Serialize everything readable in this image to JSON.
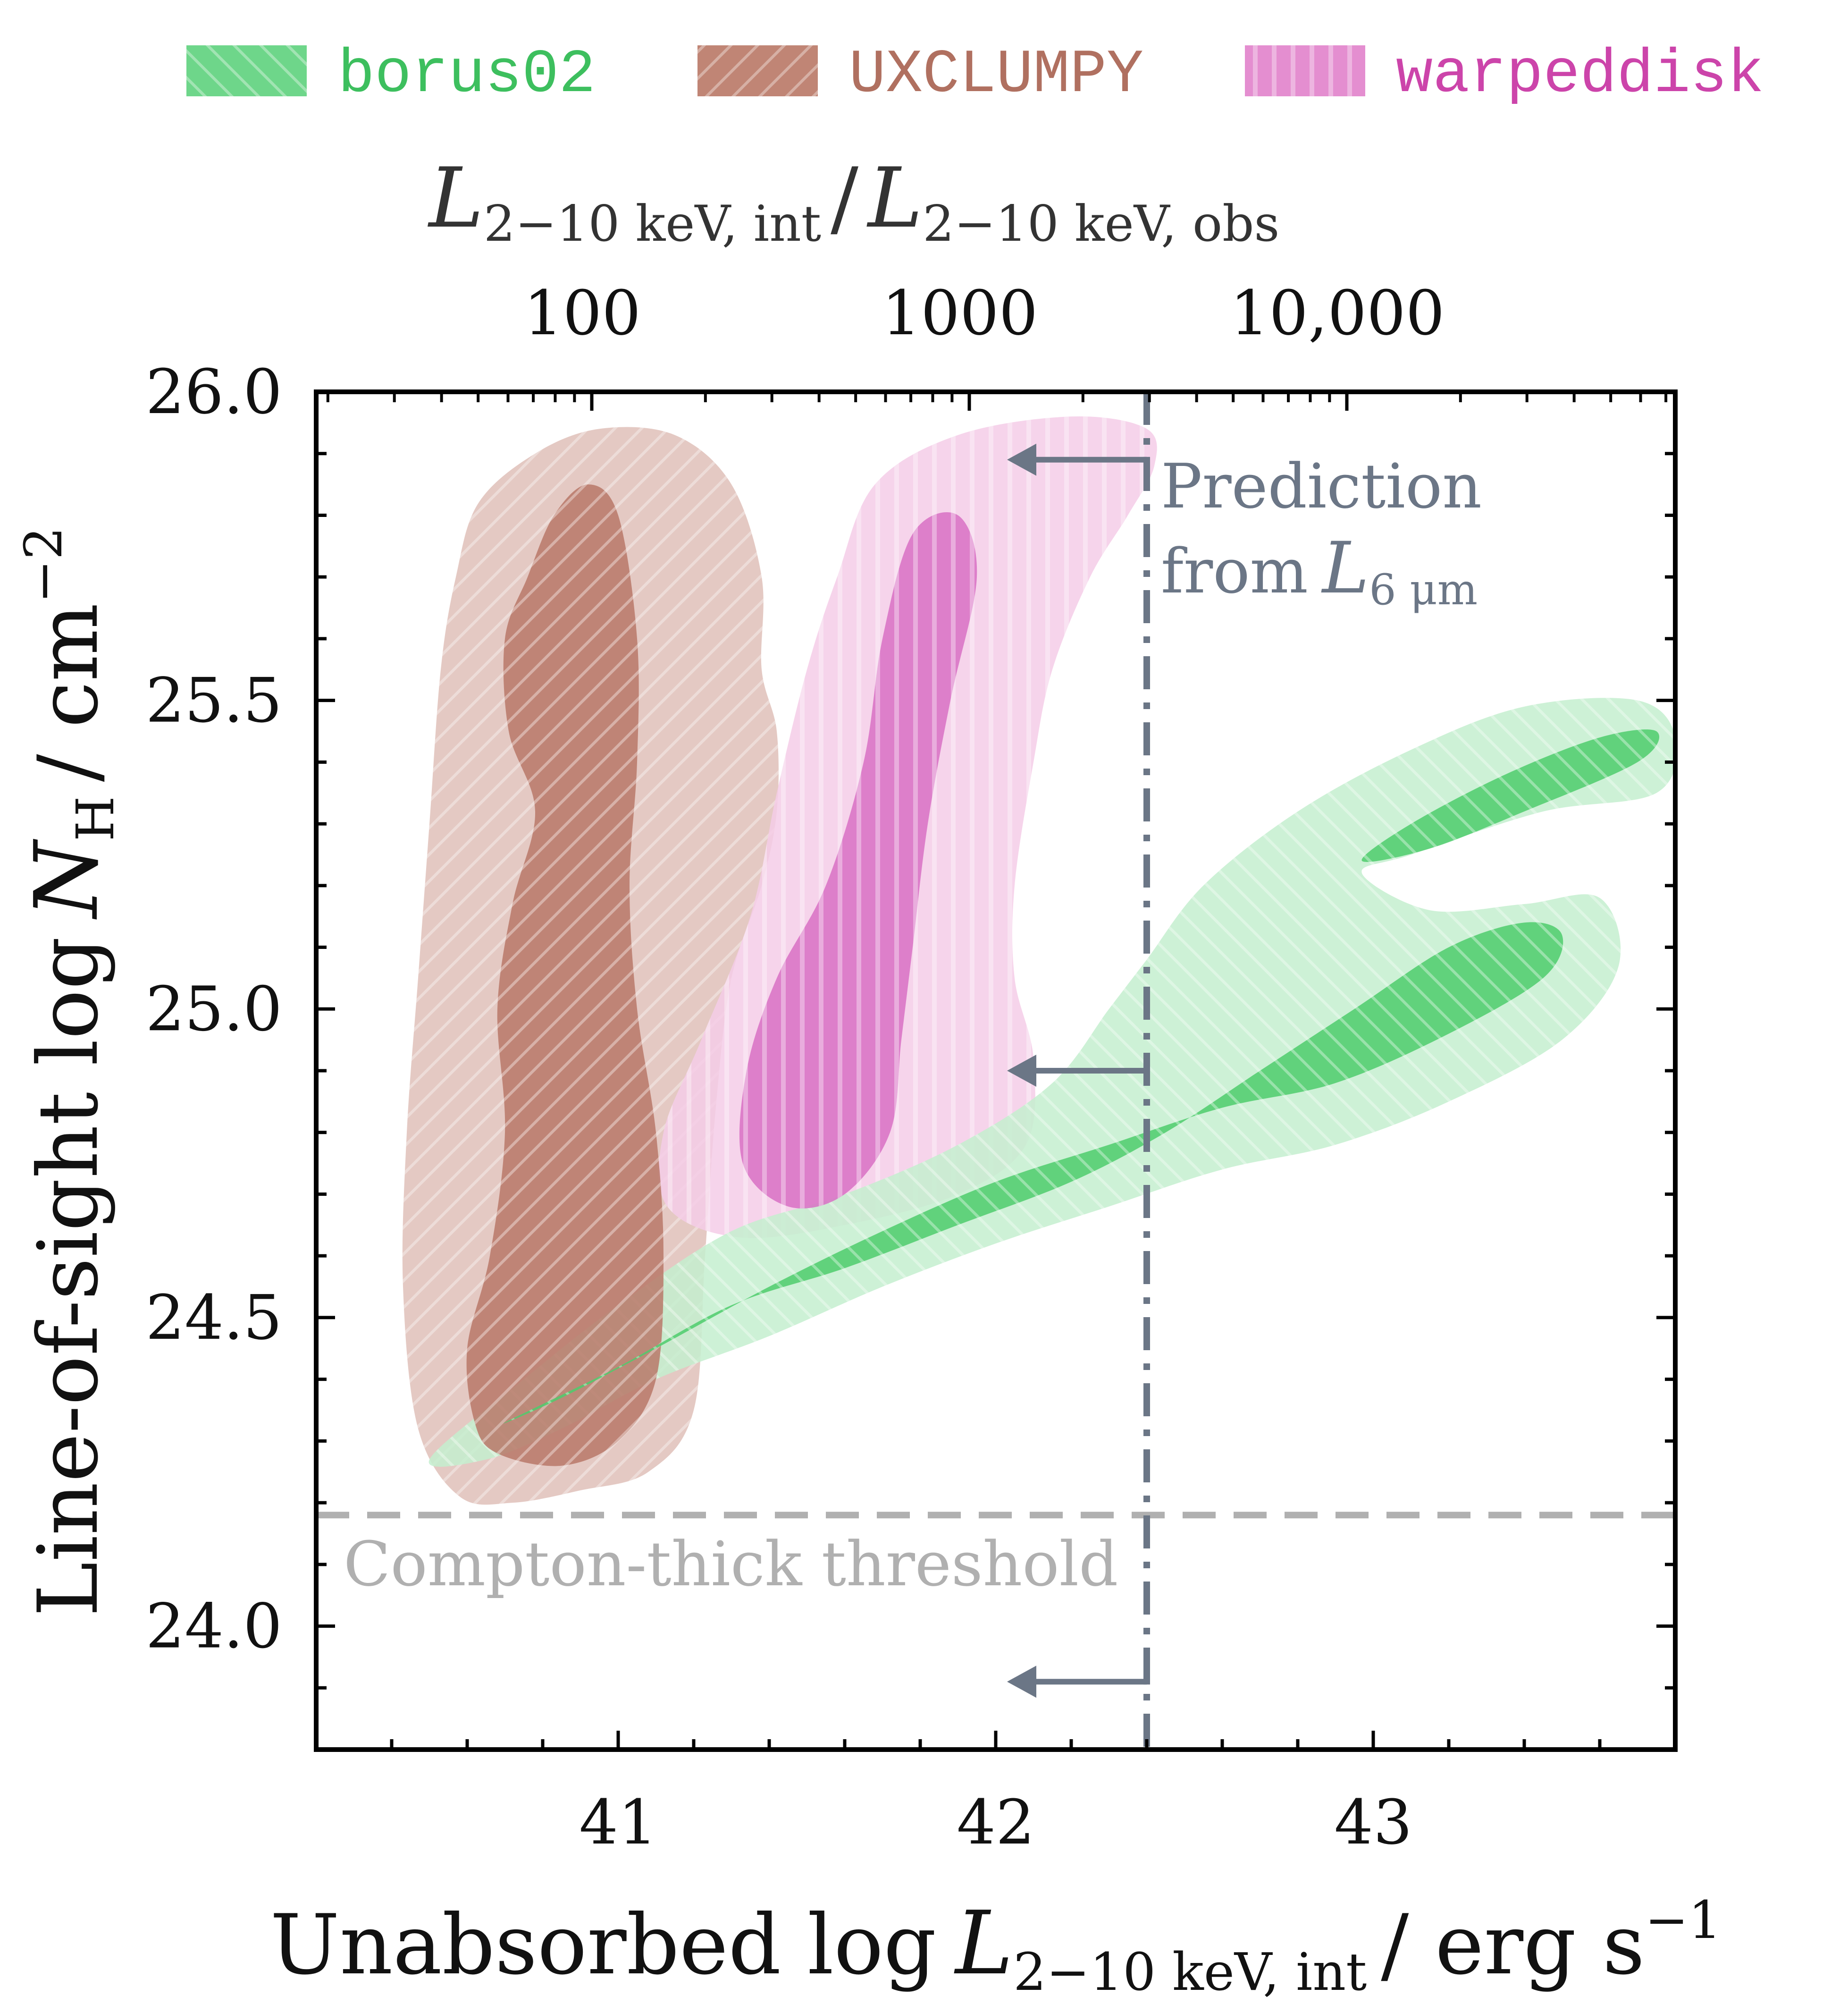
{
  "chart_data": {
    "type": "contour",
    "xaxis": {
      "label_main": "Unabsorbed log",
      "label_var": "L",
      "label_sub": "2−10 keV, int",
      "label_unit": "/ erg s",
      "label_sup": "−1",
      "lim": [
        40.2,
        43.8
      ],
      "ticks": [
        41,
        42,
        43
      ],
      "tick_labels": [
        "41",
        "42",
        "43"
      ],
      "minor_step": 0.2
    },
    "yaxis": {
      "label_main": "Line-of-sight log",
      "label_var": "N",
      "label_sub": "H",
      "label_unit": "/ cm",
      "label_sup": "−2",
      "lim": [
        23.8,
        26.0
      ],
      "ticks": [
        24.0,
        24.5,
        25.0,
        25.5,
        26.0
      ],
      "tick_labels": [
        "24.0",
        "24.5",
        "25.0",
        "25.5",
        "26.0"
      ],
      "minor_step": 0.1
    },
    "top_axis": {
      "label_var1": "L",
      "label_sub1": "2−10 keV, int",
      "label_sep": "/",
      "label_var2": "L",
      "label_sub2": "2−10 keV, obs",
      "ticks_x": [
        40.93,
        41.93,
        42.93
      ],
      "tick_labels": [
        "100",
        "1000",
        "10,000"
      ]
    },
    "legend": [
      {
        "name": "borus02",
        "color": "#3dbf5e",
        "hatch": "diagonal-back"
      },
      {
        "name": "UXCLUMPY",
        "color": "#b07060",
        "hatch": "diagonal-forward"
      },
      {
        "name": "warpeddisk",
        "color": "#cc44aa",
        "hatch": "vertical"
      }
    ],
    "series": [
      {
        "name": "UXCLUMPY",
        "outer_color": "#dfbfb8",
        "inner_color": "#b87868",
        "outer": [
          [
            40.58,
            24.21
          ],
          [
            40.72,
            24.2
          ],
          [
            40.9,
            24.22
          ],
          [
            41.08,
            24.25
          ],
          [
            41.2,
            24.35
          ],
          [
            41.23,
            24.6
          ],
          [
            41.26,
            24.85
          ],
          [
            41.3,
            25.05
          ],
          [
            41.38,
            25.2
          ],
          [
            41.42,
            25.32
          ],
          [
            41.42,
            25.45
          ],
          [
            41.38,
            25.55
          ],
          [
            41.38,
            25.7
          ],
          [
            41.3,
            25.85
          ],
          [
            41.15,
            25.93
          ],
          [
            40.95,
            25.94
          ],
          [
            40.78,
            25.9
          ],
          [
            40.63,
            25.82
          ],
          [
            40.57,
            25.7
          ],
          [
            40.53,
            25.55
          ],
          [
            40.5,
            25.3
          ],
          [
            40.47,
            25.05
          ],
          [
            40.44,
            24.8
          ],
          [
            40.43,
            24.55
          ],
          [
            40.47,
            24.32
          ],
          [
            40.58,
            24.21
          ]
        ],
        "inner": [
          [
            40.68,
            24.28
          ],
          [
            40.85,
            24.26
          ],
          [
            41.0,
            24.3
          ],
          [
            41.1,
            24.4
          ],
          [
            41.12,
            24.6
          ],
          [
            41.1,
            24.8
          ],
          [
            41.05,
            25.0
          ],
          [
            41.03,
            25.2
          ],
          [
            41.05,
            25.4
          ],
          [
            41.05,
            25.6
          ],
          [
            41.0,
            25.8
          ],
          [
            40.92,
            25.85
          ],
          [
            40.83,
            25.8
          ],
          [
            40.76,
            25.7
          ],
          [
            40.7,
            25.6
          ],
          [
            40.71,
            25.45
          ],
          [
            40.78,
            25.32
          ],
          [
            40.72,
            25.17
          ],
          [
            40.68,
            25.0
          ],
          [
            40.7,
            24.8
          ],
          [
            40.66,
            24.6
          ],
          [
            40.6,
            24.45
          ],
          [
            40.62,
            24.33
          ],
          [
            40.68,
            24.28
          ]
        ]
      },
      {
        "name": "warpeddisk",
        "outer_color": "#f4cce8",
        "inner_color": "#d870c4",
        "outer": [
          [
            41.13,
            24.68
          ],
          [
            41.32,
            24.63
          ],
          [
            41.6,
            24.65
          ],
          [
            41.9,
            24.7
          ],
          [
            42.08,
            24.78
          ],
          [
            42.1,
            24.92
          ],
          [
            42.05,
            25.05
          ],
          [
            42.05,
            25.2
          ],
          [
            42.1,
            25.4
          ],
          [
            42.15,
            25.55
          ],
          [
            42.25,
            25.7
          ],
          [
            42.35,
            25.8
          ],
          [
            42.42,
            25.88
          ],
          [
            42.4,
            25.94
          ],
          [
            42.2,
            25.96
          ],
          [
            41.9,
            25.93
          ],
          [
            41.68,
            25.85
          ],
          [
            41.58,
            25.7
          ],
          [
            41.5,
            25.55
          ],
          [
            41.42,
            25.35
          ],
          [
            41.35,
            25.15
          ],
          [
            41.22,
            24.95
          ],
          [
            41.12,
            24.8
          ],
          [
            41.13,
            24.68
          ]
        ],
        "inner": [
          [
            41.33,
            24.75
          ],
          [
            41.45,
            24.68
          ],
          [
            41.6,
            24.7
          ],
          [
            41.72,
            24.8
          ],
          [
            41.75,
            24.95
          ],
          [
            41.78,
            25.1
          ],
          [
            41.82,
            25.3
          ],
          [
            41.88,
            25.5
          ],
          [
            41.95,
            25.7
          ],
          [
            41.9,
            25.8
          ],
          [
            41.78,
            25.77
          ],
          [
            41.7,
            25.6
          ],
          [
            41.65,
            25.4
          ],
          [
            41.55,
            25.2
          ],
          [
            41.42,
            25.05
          ],
          [
            41.34,
            24.9
          ],
          [
            41.33,
            24.75
          ]
        ]
      },
      {
        "name": "borus02",
        "outer_color": "#c4eecf",
        "inner_color": "#4dcc6c",
        "outer": [
          [
            40.5,
            24.27
          ],
          [
            40.75,
            24.4
          ],
          [
            41.0,
            24.52
          ],
          [
            41.3,
            24.64
          ],
          [
            41.6,
            24.7
          ],
          [
            41.9,
            24.78
          ],
          [
            42.15,
            24.88
          ],
          [
            42.3,
            25.0
          ],
          [
            42.4,
            25.08
          ],
          [
            42.55,
            25.2
          ],
          [
            42.8,
            25.32
          ],
          [
            43.1,
            25.42
          ],
          [
            43.4,
            25.49
          ],
          [
            43.7,
            25.5
          ],
          [
            43.8,
            25.44
          ],
          [
            43.75,
            25.35
          ],
          [
            43.45,
            25.32
          ],
          [
            43.1,
            25.25
          ],
          [
            42.97,
            25.22
          ],
          [
            43.15,
            25.16
          ],
          [
            43.4,
            25.17
          ],
          [
            43.6,
            25.18
          ],
          [
            43.65,
            25.07
          ],
          [
            43.5,
            24.95
          ],
          [
            43.2,
            24.85
          ],
          [
            42.9,
            24.78
          ],
          [
            42.6,
            24.74
          ],
          [
            42.3,
            24.68
          ],
          [
            42.0,
            24.62
          ],
          [
            41.7,
            24.55
          ],
          [
            41.4,
            24.47
          ],
          [
            41.1,
            24.4
          ],
          [
            40.85,
            24.32
          ],
          [
            40.65,
            24.27
          ],
          [
            40.5,
            24.27
          ]
        ]
      },
      {
        "name": "borus02",
        "outer_color": "#c4eecf",
        "inner_color": "#4dcc6c",
        "is_inner_only": true,
        "inner": [
          [
            40.7,
            24.33
          ],
          [
            41.0,
            24.42
          ],
          [
            41.3,
            24.52
          ],
          [
            41.6,
            24.58
          ],
          [
            41.9,
            24.65
          ],
          [
            42.2,
            24.72
          ],
          [
            42.45,
            24.8
          ],
          [
            42.7,
            24.9
          ],
          [
            42.95,
            25.0
          ],
          [
            43.2,
            25.1
          ],
          [
            43.4,
            25.14
          ],
          [
            43.5,
            25.12
          ],
          [
            43.45,
            25.05
          ],
          [
            43.2,
            24.96
          ],
          [
            42.9,
            24.88
          ],
          [
            42.6,
            24.84
          ],
          [
            42.3,
            24.78
          ],
          [
            42.0,
            24.72
          ],
          [
            41.7,
            24.64
          ],
          [
            41.4,
            24.55
          ],
          [
            41.1,
            24.45
          ],
          [
            40.85,
            24.37
          ],
          [
            40.7,
            24.33
          ]
        ]
      },
      {
        "name": "borus02",
        "outer_color": "#c4eecf",
        "inner_color": "#4dcc6c",
        "is_inner_only": true,
        "inner": [
          [
            42.97,
            25.24
          ],
          [
            43.1,
            25.3
          ],
          [
            43.35,
            25.38
          ],
          [
            43.6,
            25.44
          ],
          [
            43.75,
            25.45
          ],
          [
            43.7,
            25.4
          ],
          [
            43.4,
            25.32
          ],
          [
            43.15,
            25.26
          ],
          [
            42.97,
            25.24
          ]
        ]
      }
    ],
    "reference_lines": {
      "compton_thick": {
        "y": 24.18,
        "label": "Compton-thick threshold",
        "color": "#b0b0b0"
      },
      "prediction": {
        "x": 42.4,
        "label_line1": "Prediction",
        "label_line2_pre": "from",
        "label_var": "L",
        "label_sub": "6 μm",
        "color": "#6b7686"
      },
      "arrows_y": [
        25.89,
        24.9,
        23.91
      ],
      "arrow_tail_x": 42.4,
      "arrow_head_x": 42.03
    }
  }
}
